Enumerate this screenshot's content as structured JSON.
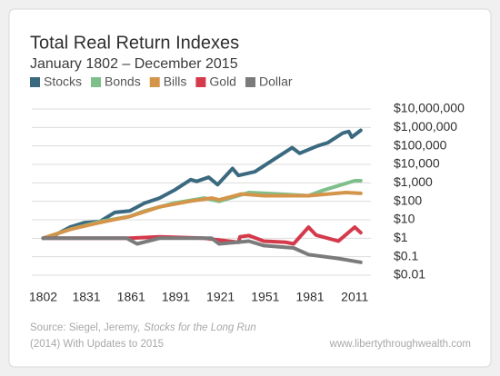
{
  "chart_data": {
    "type": "line",
    "title": "Total Real Return Indexes",
    "subtitle": "January 1802 – December 2015",
    "log_scale": true,
    "grid": true,
    "legend_position": "top",
    "xlim": [
      1795,
      2020
    ],
    "xticks": [
      1802,
      1831,
      1861,
      1891,
      1921,
      1951,
      1981,
      2011
    ],
    "ylim": [
      0.01,
      10000000
    ],
    "yticks": [
      {
        "value": 0.01,
        "label": "$0.01"
      },
      {
        "value": 0.1,
        "label": "$0.1"
      },
      {
        "value": 1,
        "label": "$1"
      },
      {
        "value": 10,
        "label": "$10"
      },
      {
        "value": 100,
        "label": "$100"
      },
      {
        "value": 1000,
        "label": "$1,000"
      },
      {
        "value": 10000,
        "label": "$10,000"
      },
      {
        "value": 100000,
        "label": "$100,000"
      },
      {
        "value": 1000000,
        "label": "$1,000,000"
      },
      {
        "value": 10000000,
        "label": "$10,000,000"
      }
    ],
    "series": [
      {
        "name": "Stocks",
        "color": "#3b6a80",
        "x": [
          1802,
          1810,
          1820,
          1830,
          1840,
          1850,
          1860,
          1870,
          1880,
          1890,
          1901,
          1905,
          1913,
          1919,
          1929,
          1933,
          1944,
          1956,
          1969,
          1974,
          1986,
          1993,
          2003,
          2007,
          2009,
          2015
        ],
        "values": [
          1,
          1.5,
          4,
          7,
          8,
          25,
          30,
          80,
          150,
          400,
          1500,
          1200,
          2000,
          800,
          6000,
          2500,
          4000,
          17000,
          80000,
          40000,
          100000,
          150000,
          500000,
          600000,
          300000,
          700000
        ]
      },
      {
        "name": "Bonds",
        "color": "#7fbf8c",
        "x": [
          1802,
          1820,
          1840,
          1860,
          1870,
          1890,
          1910,
          1920,
          1940,
          1960,
          1980,
          1990,
          2011,
          2015
        ],
        "values": [
          1,
          3,
          8,
          15,
          30,
          80,
          150,
          100,
          300,
          250,
          200,
          400,
          1300,
          1300
        ]
      },
      {
        "name": "Bills",
        "color": "#d4954b",
        "x": [
          1802,
          1820,
          1840,
          1860,
          1880,
          1900,
          1915,
          1920,
          1935,
          1950,
          1980,
          2005,
          2015
        ],
        "values": [
          1,
          3,
          7,
          15,
          50,
          100,
          150,
          120,
          250,
          200,
          200,
          300,
          270
        ]
      },
      {
        "name": "Gold",
        "color": "#d43a4b",
        "x": [
          1802,
          1840,
          1860,
          1880,
          1910,
          1933,
          1934,
          1940,
          1950,
          1965,
          1970,
          1980,
          1985,
          2000,
          2011,
          2015
        ],
        "values": [
          1,
          1,
          1,
          1.2,
          1,
          0.6,
          1.2,
          1.4,
          0.7,
          0.6,
          0.5,
          4,
          1.5,
          0.7,
          4,
          2
        ]
      },
      {
        "name": "Dollar",
        "color": "#7b7b7b",
        "x": [
          1802,
          1840,
          1858,
          1865,
          1880,
          1915,
          1920,
          1940,
          1950,
          1970,
          1980,
          2000,
          2015
        ],
        "values": [
          1,
          1,
          1,
          0.5,
          1,
          1,
          0.5,
          0.7,
          0.4,
          0.3,
          0.13,
          0.08,
          0.05
        ]
      }
    ],
    "source_prefix": "Source: Siegel, Jeremy,",
    "source_italic": "Stocks for the Long Run",
    "source_line2": "(2014) With Updates to 2015",
    "website": "www.libertythroughwealth.com"
  }
}
